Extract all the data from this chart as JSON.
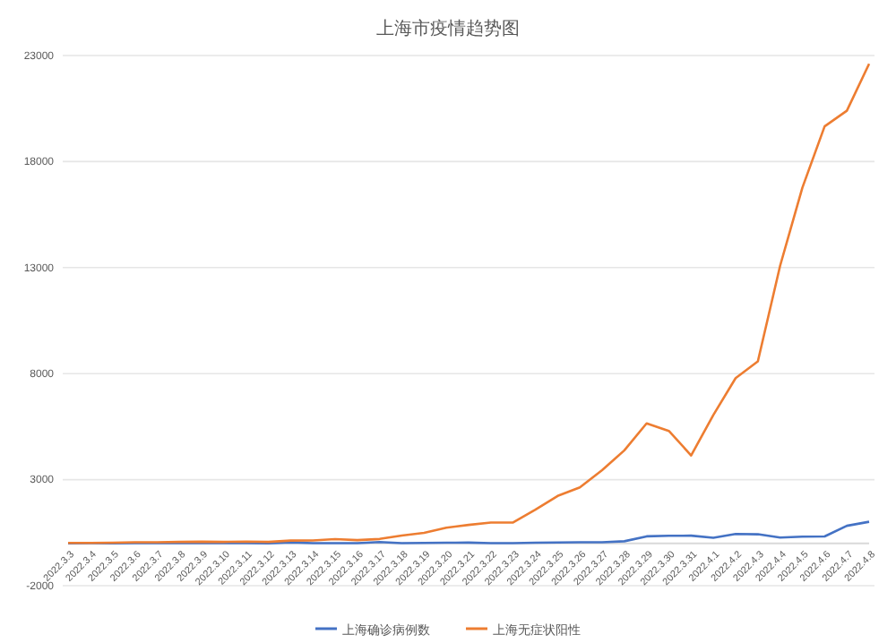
{
  "chart_data": {
    "type": "line",
    "title": "上海市疫情趋势图",
    "categories": [
      "2022.3.3",
      "2022.3.4",
      "2022.3.5",
      "2022.3.6",
      "2022.3.7",
      "2022.3.8",
      "2022.3.9",
      "2022.3.10",
      "2022.3.11",
      "2022.3.12",
      "2022.3.13",
      "2022.3.14",
      "2022.3.15",
      "2022.3.16",
      "2022.3.17",
      "2022.3.18",
      "2022.3.19",
      "2022.3.20",
      "2022.3.21",
      "2022.3.22",
      "2022.3.23",
      "2022.3.24",
      "2022.3.25",
      "2022.3.26",
      "2022.3.27",
      "2022.3.28",
      "2022.3.29",
      "2022.3.30",
      "2022.3.31",
      "2022.4.1",
      "2022.4.2",
      "2022.4.3",
      "2022.4.4",
      "2022.4.5",
      "2022.4.6",
      "2022.4.7",
      "2022.4.8"
    ],
    "series": [
      {
        "name": "上海确诊病例数",
        "color": "#4472c4",
        "values": [
          2,
          3,
          0,
          3,
          4,
          3,
          4,
          11,
          5,
          1,
          41,
          9,
          5,
          8,
          57,
          8,
          17,
          24,
          31,
          4,
          4,
          29,
          38,
          45,
          50,
          96,
          326,
          355,
          358,
          260,
          438,
          425,
          268,
          311,
          322,
          824,
          1015
        ]
      },
      {
        "name": "上海无症状阳性",
        "color": "#ed7d31",
        "values": [
          14,
          16,
          28,
          45,
          51,
          62,
          76,
          64,
          78,
          64,
          128,
          130,
          197,
          150,
          203,
          366,
          492,
          734,
          865,
          977,
          979,
          1580,
          2231,
          2631,
          3450,
          4381,
          5656,
          5298,
          4144,
          6051,
          7788,
          8581,
          13086,
          16766,
          19660,
          20398,
          22609
        ]
      }
    ],
    "ylim": [
      -2000,
      23000
    ],
    "yticks": [
      -2000,
      3000,
      8000,
      13000,
      18000,
      23000
    ],
    "grid": "y",
    "legend": "bottom",
    "line_style": "solid",
    "marker": "none"
  }
}
